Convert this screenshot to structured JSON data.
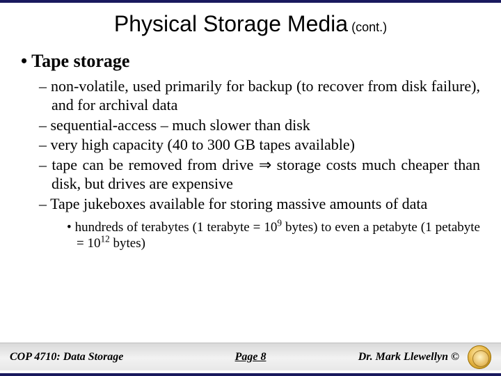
{
  "colors": {
    "band": "#1a1a5e",
    "background": "#ffffff",
    "text": "#000000",
    "footer_gradient_top": "#d9d9d9",
    "footer_gradient_bottom": "#e8e8e8"
  },
  "typography": {
    "title_font": "Arial",
    "body_font": "Times New Roman",
    "title_size_pt": 32,
    "cont_size_pt": 18,
    "h1_size_pt": 26,
    "lvl2_size_pt": 22,
    "lvl3_size_pt": 19,
    "footer_size_pt": 16
  },
  "title": {
    "main": "Physical Storage Media",
    "cont": " (cont.)"
  },
  "heading": "Tape storage",
  "bullets_lvl2": [
    "non-volatile, used primarily for backup (to recover from disk failure), and for archival data",
    "sequential-access – much slower than disk",
    "very high capacity (40 to 300 GB tapes available)",
    "tape can be removed from drive ⇒ storage costs much cheaper than disk, but drives are expensive",
    "Tape jukeboxes available for storing massive amounts of data"
  ],
  "bullets_lvl3": [
    {
      "pre": "hundreds of terabytes (1 terabyte = 10",
      "sup1": "9",
      "mid": " bytes) to even a petabyte (1 petabyte = 10",
      "sup2": "12",
      "post": " bytes)"
    }
  ],
  "footer": {
    "left": "COP 4710: Data Storage",
    "center": "Page 8",
    "right": "Dr. Mark Llewellyn ©"
  }
}
